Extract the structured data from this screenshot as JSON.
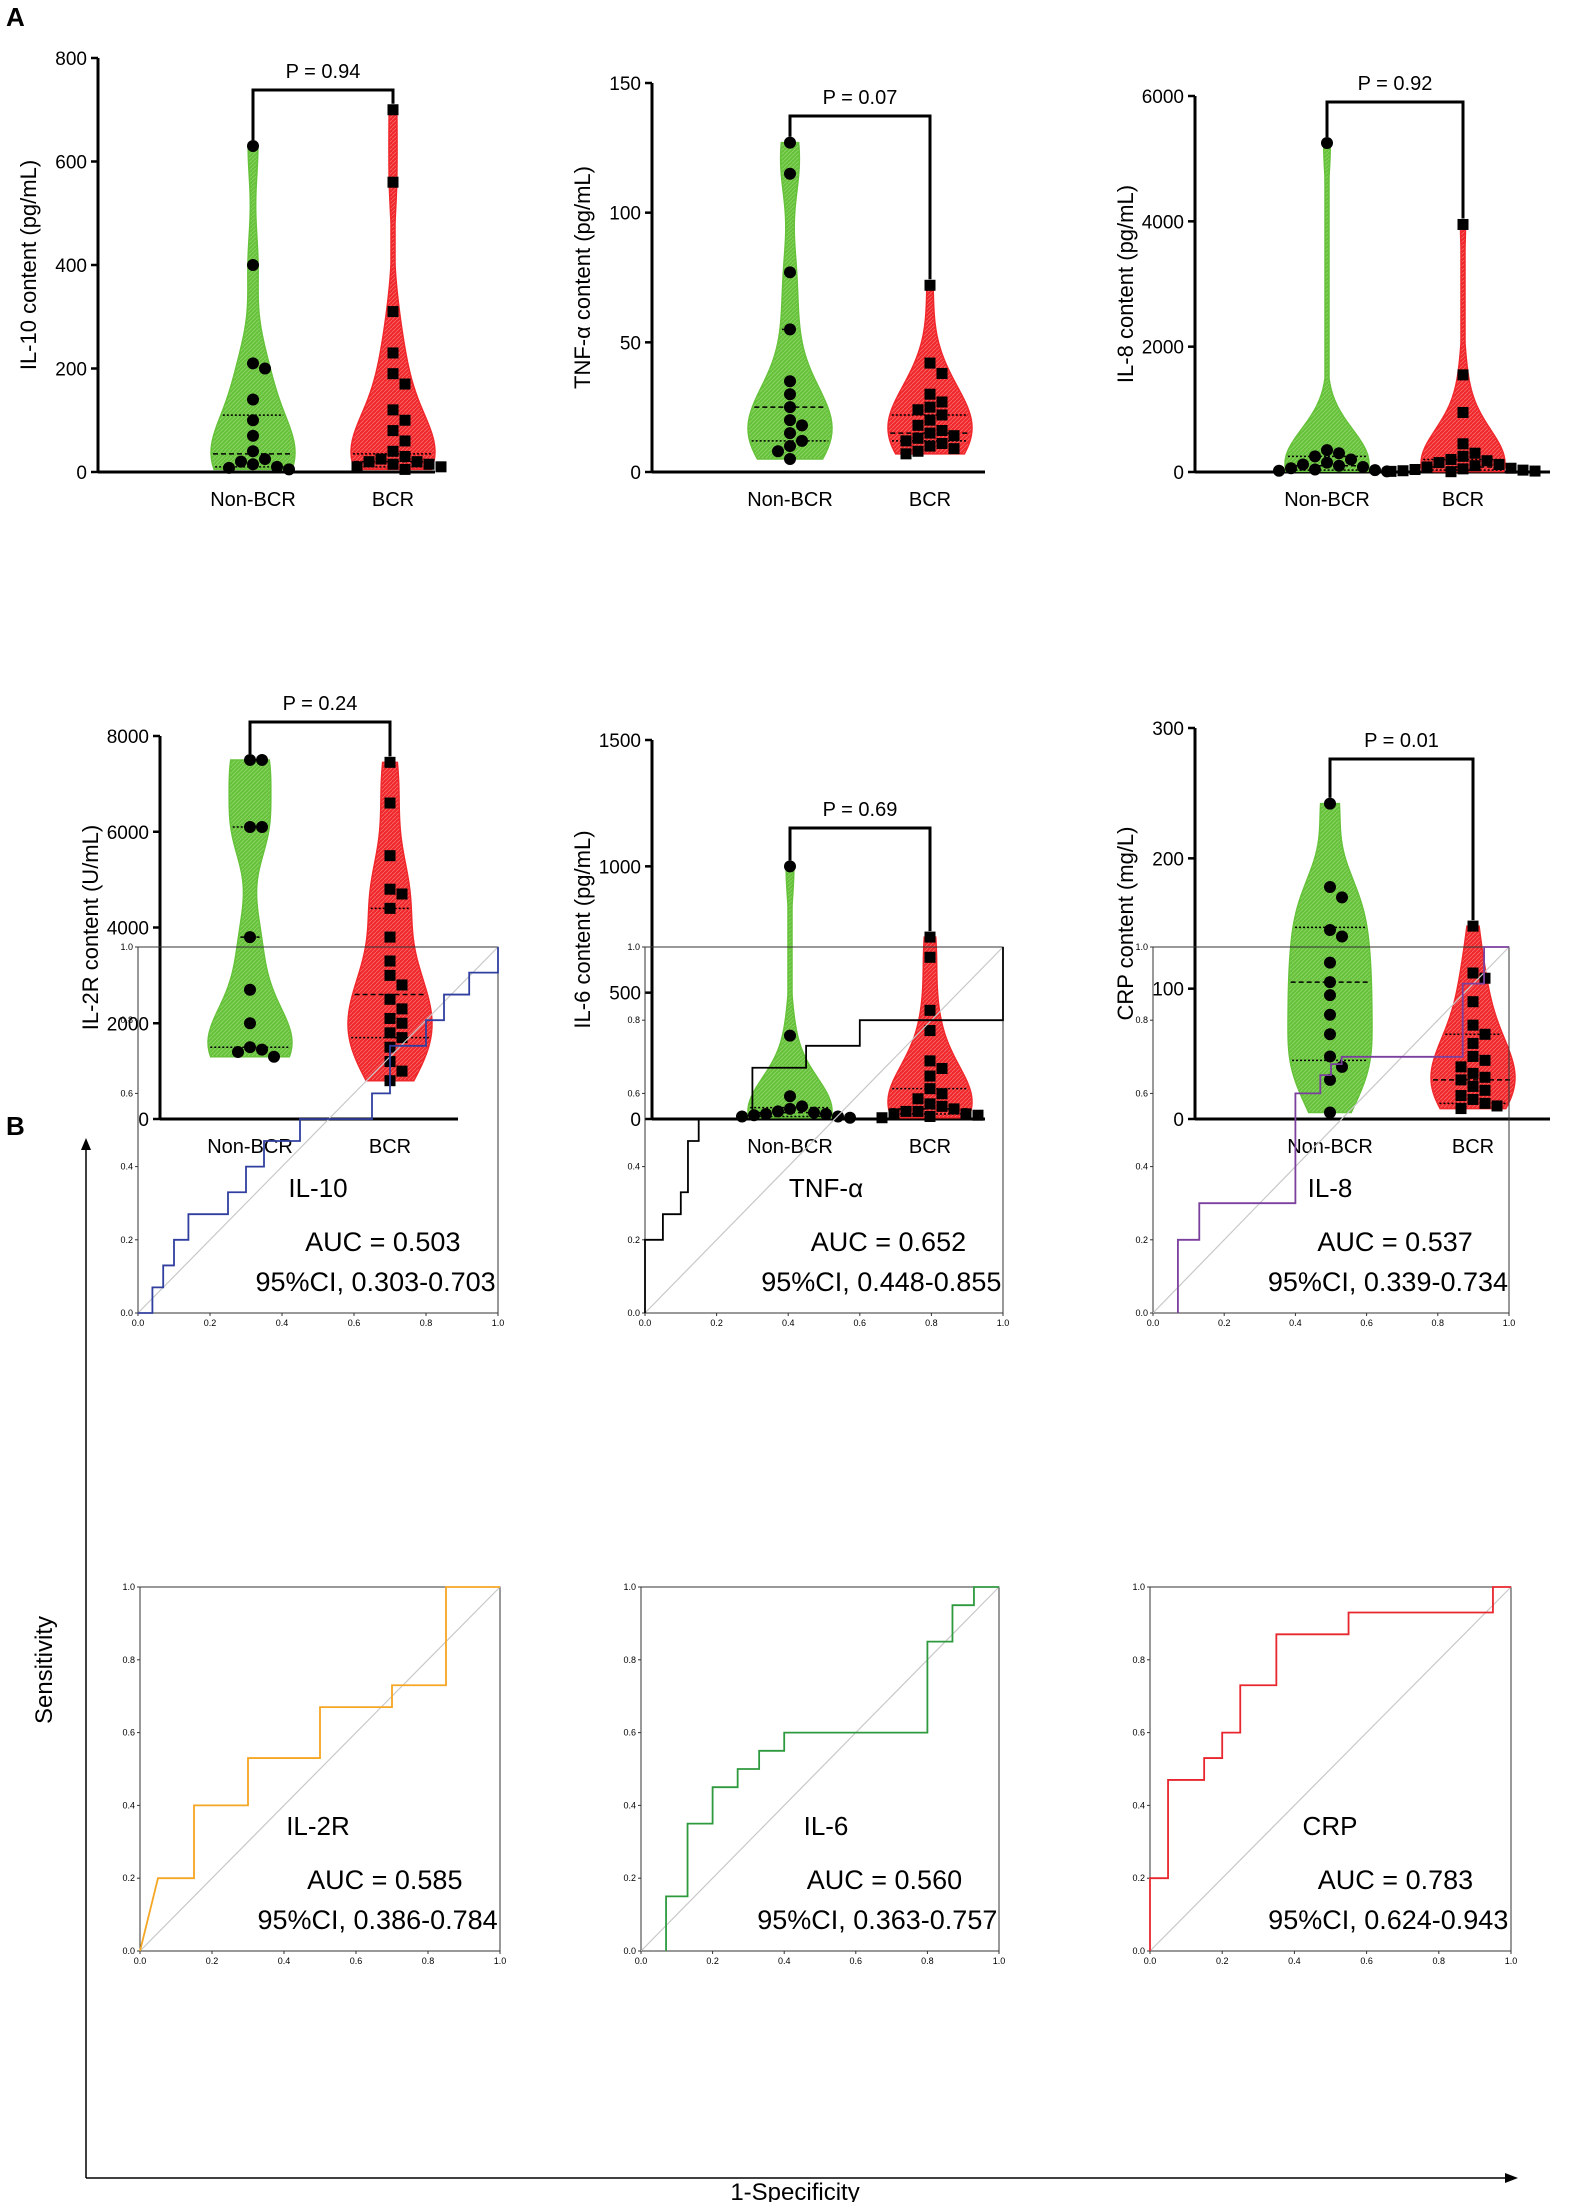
{
  "panel_labels": {
    "a": "A",
    "b": "B"
  },
  "colors": {
    "nonbcr": "#66c23a",
    "bcr": "#f0282c",
    "diagonal": "#c8c8c8"
  },
  "roc_axes": {
    "x_title": "1-Specificity",
    "y_title": "Sensitivity"
  },
  "chart_data": [
    {
      "type": "violin",
      "id": "il10",
      "ylabel": "IL-10 content (pg/mL)",
      "ylim": [
        0,
        800
      ],
      "yticks": [
        0,
        200,
        400,
        600,
        800
      ],
      "categories": [
        "Non-BCR",
        "BCR"
      ],
      "pvalue": "P = 0.94",
      "series": [
        {
          "name": "Non-BCR",
          "values": [
            630,
            400,
            210,
            200,
            140,
            100,
            70,
            40,
            25,
            20,
            15,
            10,
            8,
            5
          ],
          "quartiles": [
            10,
            35,
            110
          ]
        },
        {
          "name": "BCR",
          "values": [
            700,
            560,
            310,
            230,
            190,
            170,
            120,
            100,
            80,
            60,
            40,
            30,
            25,
            20,
            20,
            15,
            15,
            10,
            10,
            5
          ],
          "quartiles": [
            10,
            20,
            35
          ]
        }
      ]
    },
    {
      "type": "violin",
      "id": "tnfa",
      "ylabel": "TNF-α content (pg/mL)",
      "ylim": [
        0,
        150
      ],
      "yticks": [
        0,
        50,
        100,
        150
      ],
      "categories": [
        "Non-BCR",
        "BCR"
      ],
      "pvalue": "P = 0.07",
      "series": [
        {
          "name": "Non-BCR",
          "values": [
            127,
            115,
            77,
            55,
            35,
            30,
            25,
            20,
            18,
            15,
            12,
            10,
            8,
            5
          ],
          "quartiles": [
            12,
            25,
            55
          ]
        },
        {
          "name": "BCR",
          "values": [
            72,
            42,
            38,
            30,
            27,
            25,
            24,
            22,
            20,
            18,
            16,
            15,
            14,
            13,
            12,
            11,
            10,
            9,
            8,
            7
          ],
          "quartiles": [
            12,
            15,
            22
          ]
        }
      ]
    },
    {
      "type": "violin",
      "id": "il8",
      "ylabel": "IL-8 content (pg/mL)",
      "ylim": [
        0,
        6000
      ],
      "yticks": [
        0,
        2000,
        4000,
        6000
      ],
      "categories": [
        "Non-BCR",
        "BCR"
      ],
      "pvalue": "P = 0.92",
      "series": [
        {
          "name": "Non-BCR",
          "values": [
            5250,
            350,
            300,
            250,
            200,
            150,
            120,
            100,
            80,
            60,
            40,
            30,
            20,
            10
          ],
          "quartiles": [
            30,
            100,
            250
          ]
        },
        {
          "name": "BCR",
          "values": [
            3950,
            1550,
            950,
            450,
            300,
            250,
            200,
            180,
            150,
            120,
            100,
            80,
            60,
            50,
            40,
            30,
            20,
            15,
            10,
            5
          ],
          "quartiles": [
            30,
            80,
            200
          ]
        }
      ]
    },
    {
      "type": "violin",
      "id": "il2r",
      "ylabel": "IL-2R content (U/mL)",
      "ylim": [
        0,
        8000
      ],
      "yticks": [
        0,
        2000,
        4000,
        6000,
        8000
      ],
      "categories": [
        "Non-BCR",
        "BCR"
      ],
      "pvalue": "P = 0.24",
      "series": [
        {
          "name": "Non-BCR",
          "values": [
            7500,
            7500,
            6100,
            6100,
            3800,
            2700,
            2000,
            1500,
            1450,
            1400,
            1300
          ],
          "quartiles": [
            1500,
            3800,
            6100
          ]
        },
        {
          "name": "BCR",
          "values": [
            7450,
            6600,
            5500,
            4800,
            4700,
            4400,
            3800,
            3300,
            3000,
            2800,
            2500,
            2300,
            2100,
            2000,
            1800,
            1700,
            1500,
            1200,
            1000,
            800
          ],
          "quartiles": [
            1700,
            2600,
            4400
          ]
        }
      ]
    },
    {
      "type": "violin",
      "id": "il6",
      "ylabel": "IL-6 content (pg/mL)",
      "ylim": [
        0,
        1500
      ],
      "yticks": [
        0,
        500,
        1000,
        1500
      ],
      "categories": [
        "Non-BCR",
        "BCR"
      ],
      "pvalue": "P = 0.69",
      "series": [
        {
          "name": "Non-BCR",
          "values": [
            1000,
            330,
            90,
            50,
            40,
            30,
            25,
            20,
            20,
            15,
            10,
            10,
            5
          ],
          "quartiles": [
            10,
            25,
            45
          ]
        },
        {
          "name": "BCR",
          "values": [
            720,
            640,
            430,
            350,
            230,
            200,
            170,
            120,
            100,
            80,
            60,
            50,
            40,
            30,
            30,
            20,
            20,
            15,
            10,
            5
          ],
          "quartiles": [
            20,
            40,
            120
          ]
        }
      ]
    },
    {
      "type": "violin",
      "id": "crp",
      "ylabel": "CRP content (mg/L)",
      "ylim": [
        0,
        300
      ],
      "yticks": [
        0,
        100,
        200,
        300
      ],
      "categories": [
        "Non-BCR",
        "BCR"
      ],
      "pvalue": "P = 0.01",
      "series": [
        {
          "name": "Non-BCR",
          "values": [
            242,
            178,
            170,
            145,
            140,
            120,
            105,
            95,
            80,
            65,
            48,
            40,
            30,
            5
          ],
          "quartiles": [
            45,
            105,
            147
          ]
        },
        {
          "name": "BCR",
          "values": [
            148,
            112,
            108,
            90,
            72,
            65,
            58,
            48,
            45,
            40,
            35,
            32,
            30,
            25,
            22,
            18,
            15,
            12,
            10,
            8
          ],
          "quartiles": [
            12,
            30,
            65
          ]
        }
      ]
    },
    {
      "type": "roc",
      "id": "roc-il10",
      "title": "IL-10",
      "color": "#303f9f",
      "auc": "AUC = 0.503",
      "ci": "95%CI, 0.303-0.703",
      "xticks": [
        "0.0",
        "0.2",
        "0.4",
        "0.6",
        "0.8",
        "1.0"
      ],
      "yticks": [
        "0.0",
        "0.2",
        "0.4",
        "0.6",
        "0.8",
        "1.0"
      ],
      "x": [
        0,
        0.04,
        0.04,
        0.07,
        0.07,
        0.1,
        0.1,
        0.14,
        0.14,
        0.25,
        0.25,
        0.3,
        0.3,
        0.35,
        0.35,
        0.45,
        0.45,
        0.55,
        0.55,
        0.65,
        0.65,
        0.7,
        0.7,
        0.8,
        0.8,
        0.85,
        0.85,
        0.92,
        0.92,
        1.0,
        1.0
      ],
      "y": [
        0,
        0,
        0.07,
        0.07,
        0.13,
        0.13,
        0.2,
        0.2,
        0.27,
        0.27,
        0.33,
        0.33,
        0.4,
        0.4,
        0.47,
        0.47,
        0.53,
        0.53,
        0.53,
        0.53,
        0.6,
        0.6,
        0.73,
        0.73,
        0.8,
        0.8,
        0.87,
        0.87,
        0.93,
        0.93,
        1.0
      ]
    },
    {
      "type": "roc",
      "id": "roc-tnfa",
      "title": "TNF-α",
      "color": "#000000",
      "auc": "AUC = 0.652",
      "ci": "95%CI, 0.448-0.855",
      "xticks": [
        "0.0",
        "0.2",
        "0.4",
        "0.6",
        "0.8",
        "1.0"
      ],
      "yticks": [
        "0.0",
        "0.2",
        "0.4",
        "0.6",
        "0.8",
        "1.0"
      ],
      "x": [
        0,
        0,
        0.05,
        0.05,
        0.1,
        0.1,
        0.12,
        0.12,
        0.15,
        0.15,
        0.3,
        0.3,
        0.45,
        0.45,
        0.6,
        0.6,
        1.0,
        1.0
      ],
      "y": [
        0,
        0.2,
        0.2,
        0.27,
        0.27,
        0.33,
        0.33,
        0.47,
        0.47,
        0.53,
        0.53,
        0.67,
        0.67,
        0.73,
        0.73,
        0.8,
        0.8,
        1.0
      ]
    },
    {
      "type": "roc",
      "id": "roc-il8",
      "title": "IL-8",
      "color": "#7b3f9e",
      "auc": "AUC = 0.537",
      "ci": "95%CI, 0.339-0.734",
      "xticks": [
        "0.0",
        "0.2",
        "0.4",
        "0.6",
        "0.8",
        "1.0"
      ],
      "yticks": [
        "0.0",
        "0.2",
        "0.4",
        "0.6",
        "0.8",
        "1.0"
      ],
      "x": [
        0.07,
        0.07,
        0.13,
        0.13,
        0.4,
        0.4,
        0.47,
        0.47,
        0.5,
        0.5,
        0.53,
        0.53,
        0.87,
        0.87,
        0.93,
        0.93,
        1.0
      ],
      "y": [
        0,
        0.2,
        0.2,
        0.3,
        0.3,
        0.6,
        0.6,
        0.65,
        0.65,
        0.68,
        0.68,
        0.7,
        0.7,
        0.9,
        0.9,
        1.0,
        1.0
      ]
    },
    {
      "type": "roc",
      "id": "roc-il2r",
      "title": "IL-2R",
      "color": "#f5a623",
      "auc": "AUC = 0.585",
      "ci": "95%CI, 0.386-0.784",
      "xticks": [
        "0.0",
        "0.2",
        "0.4",
        "0.6",
        "0.8",
        "1.0"
      ],
      "yticks": [
        "0.0",
        "0.2",
        "0.4",
        "0.6",
        "0.8",
        "1.0"
      ],
      "x": [
        0,
        0.05,
        0.05,
        0.15,
        0.15,
        0.3,
        0.3,
        0.5,
        0.5,
        0.7,
        0.7,
        0.85,
        0.85,
        1.0
      ],
      "y": [
        0,
        0.2,
        0.2,
        0.2,
        0.4,
        0.4,
        0.53,
        0.53,
        0.67,
        0.67,
        0.73,
        0.73,
        1.0,
        1.0
      ]
    },
    {
      "type": "roc",
      "id": "roc-il6",
      "title": "IL-6",
      "color": "#2e9a3e",
      "auc": "AUC = 0.560",
      "ci": "95%CI, 0.363-0.757",
      "xticks": [
        "0.0",
        "0.2",
        "0.4",
        "0.6",
        "0.8",
        "1.0"
      ],
      "yticks": [
        "0.0",
        "0.2",
        "0.4",
        "0.6",
        "0.8",
        "1.0"
      ],
      "x": [
        0.07,
        0.07,
        0.13,
        0.13,
        0.2,
        0.2,
        0.27,
        0.27,
        0.33,
        0.33,
        0.4,
        0.4,
        0.8,
        0.8,
        0.87,
        0.87,
        0.93,
        0.93,
        1.0
      ],
      "y": [
        0,
        0.15,
        0.15,
        0.35,
        0.35,
        0.45,
        0.45,
        0.5,
        0.5,
        0.55,
        0.55,
        0.6,
        0.6,
        0.85,
        0.85,
        0.95,
        0.95,
        1.0,
        1.0
      ]
    },
    {
      "type": "roc",
      "id": "roc-crp",
      "title": "CRP",
      "color": "#e8262d",
      "auc": "AUC = 0.783",
      "ci": "95%CI, 0.624-0.943",
      "xticks": [
        "0.0",
        "0.2",
        "0.4",
        "0.6",
        "0.8",
        "1.0"
      ],
      "yticks": [
        "0.0",
        "0.2",
        "0.4",
        "0.6",
        "0.8",
        "1.0"
      ],
      "x": [
        0,
        0,
        0.05,
        0.05,
        0.15,
        0.15,
        0.2,
        0.2,
        0.25,
        0.25,
        0.35,
        0.35,
        0.55,
        0.55,
        0.95,
        0.95,
        1.0
      ],
      "y": [
        0,
        0.2,
        0.2,
        0.47,
        0.47,
        0.53,
        0.53,
        0.6,
        0.6,
        0.73,
        0.73,
        0.87,
        0.87,
        0.93,
        0.93,
        1.0,
        1.0
      ]
    }
  ]
}
